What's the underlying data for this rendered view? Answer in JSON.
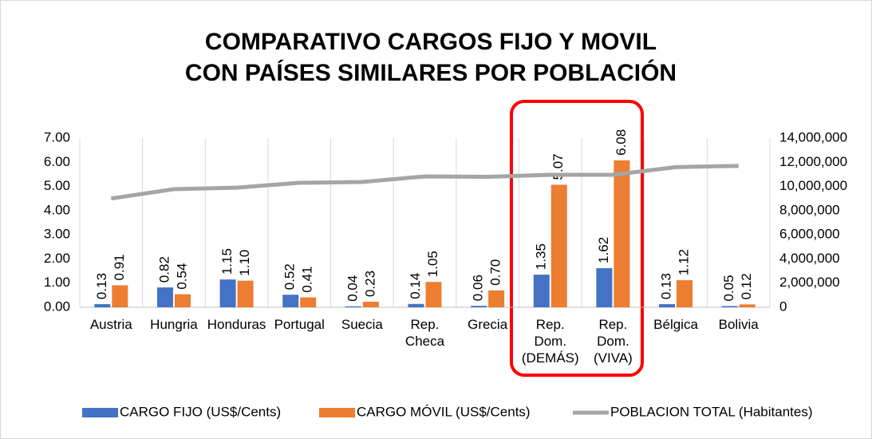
{
  "chart_data": {
    "type": "bar",
    "title": [
      "COMPARATIVO  CARGOS FIJO Y MOVIL",
      "CON PAÍSES SIMILARES POR POBLACIÓN"
    ],
    "categories": [
      "Austria",
      "Hungria",
      "Honduras",
      "Portugal",
      "Suecia",
      "Rep. Checa",
      "Grecia",
      "Rep. Dom. (DEMÁS)",
      "Rep. Dom. (VIVA)",
      "Bélgica",
      "Bolivia"
    ],
    "series": [
      {
        "name": "CARGO FIJO (US$/Cents)",
        "color": "#4472c4",
        "type": "bar",
        "values": [
          0.13,
          0.82,
          1.15,
          0.52,
          0.04,
          0.14,
          0.06,
          1.35,
          1.62,
          0.13,
          0.05
        ],
        "value_labels": [
          "0.13",
          "0.82",
          "1.15",
          "0.52",
          "0.04",
          "0.14",
          "0.06",
          "1.35",
          "1.62",
          "0.13",
          "0.05"
        ]
      },
      {
        "name": "CARGO MÓVIL (US$/Cents)",
        "color": "#ed7d31",
        "type": "bar",
        "values": [
          0.91,
          0.54,
          1.1,
          0.41,
          0.23,
          1.05,
          0.7,
          5.07,
          6.08,
          1.12,
          0.12
        ],
        "value_labels": [
          "0.91",
          "0.54",
          "1.10",
          "0.41",
          "0.23",
          "1.05",
          "0.70",
          "5.07",
          "6.08",
          "1.12",
          "0.12"
        ]
      },
      {
        "name": "POBLACION TOTAL (Habitantes)",
        "color": "#a5a5a5",
        "type": "line",
        "axis": "y2",
        "values": [
          9000000,
          9770000,
          9900000,
          10300000,
          10370000,
          10830000,
          10800000,
          10960000,
          10960000,
          11600000,
          11700000
        ]
      }
    ],
    "ylim": [
      0,
      7
    ],
    "yticks": [
      {
        "value": 0,
        "label": "0.00"
      },
      {
        "value": 1,
        "label": "1.00"
      },
      {
        "value": 2,
        "label": "2.00"
      },
      {
        "value": 3,
        "label": "3.00"
      },
      {
        "value": 4,
        "label": "4.00"
      },
      {
        "value": 5,
        "label": "5.00"
      },
      {
        "value": 6,
        "label": "6.00"
      },
      {
        "value": 7,
        "label": "7.00"
      }
    ],
    "y2lim": [
      0,
      14000000
    ],
    "y2ticks": [
      0,
      {
        "value": 2000000,
        "label": "2,000,000"
      },
      {
        "value": 4000000,
        "label": "4,000,000"
      },
      {
        "value": 6000000,
        "label": "6,000,000"
      },
      {
        "value": 8000000,
        "label": "8,000,000"
      },
      {
        "value": 10000000,
        "label": "10,000,000"
      },
      {
        "value": 12000000,
        "label": "12,000,000"
      },
      {
        "value": 14000000,
        "label": "14,000,000"
      }
    ],
    "legend": "bottom"
  }
}
